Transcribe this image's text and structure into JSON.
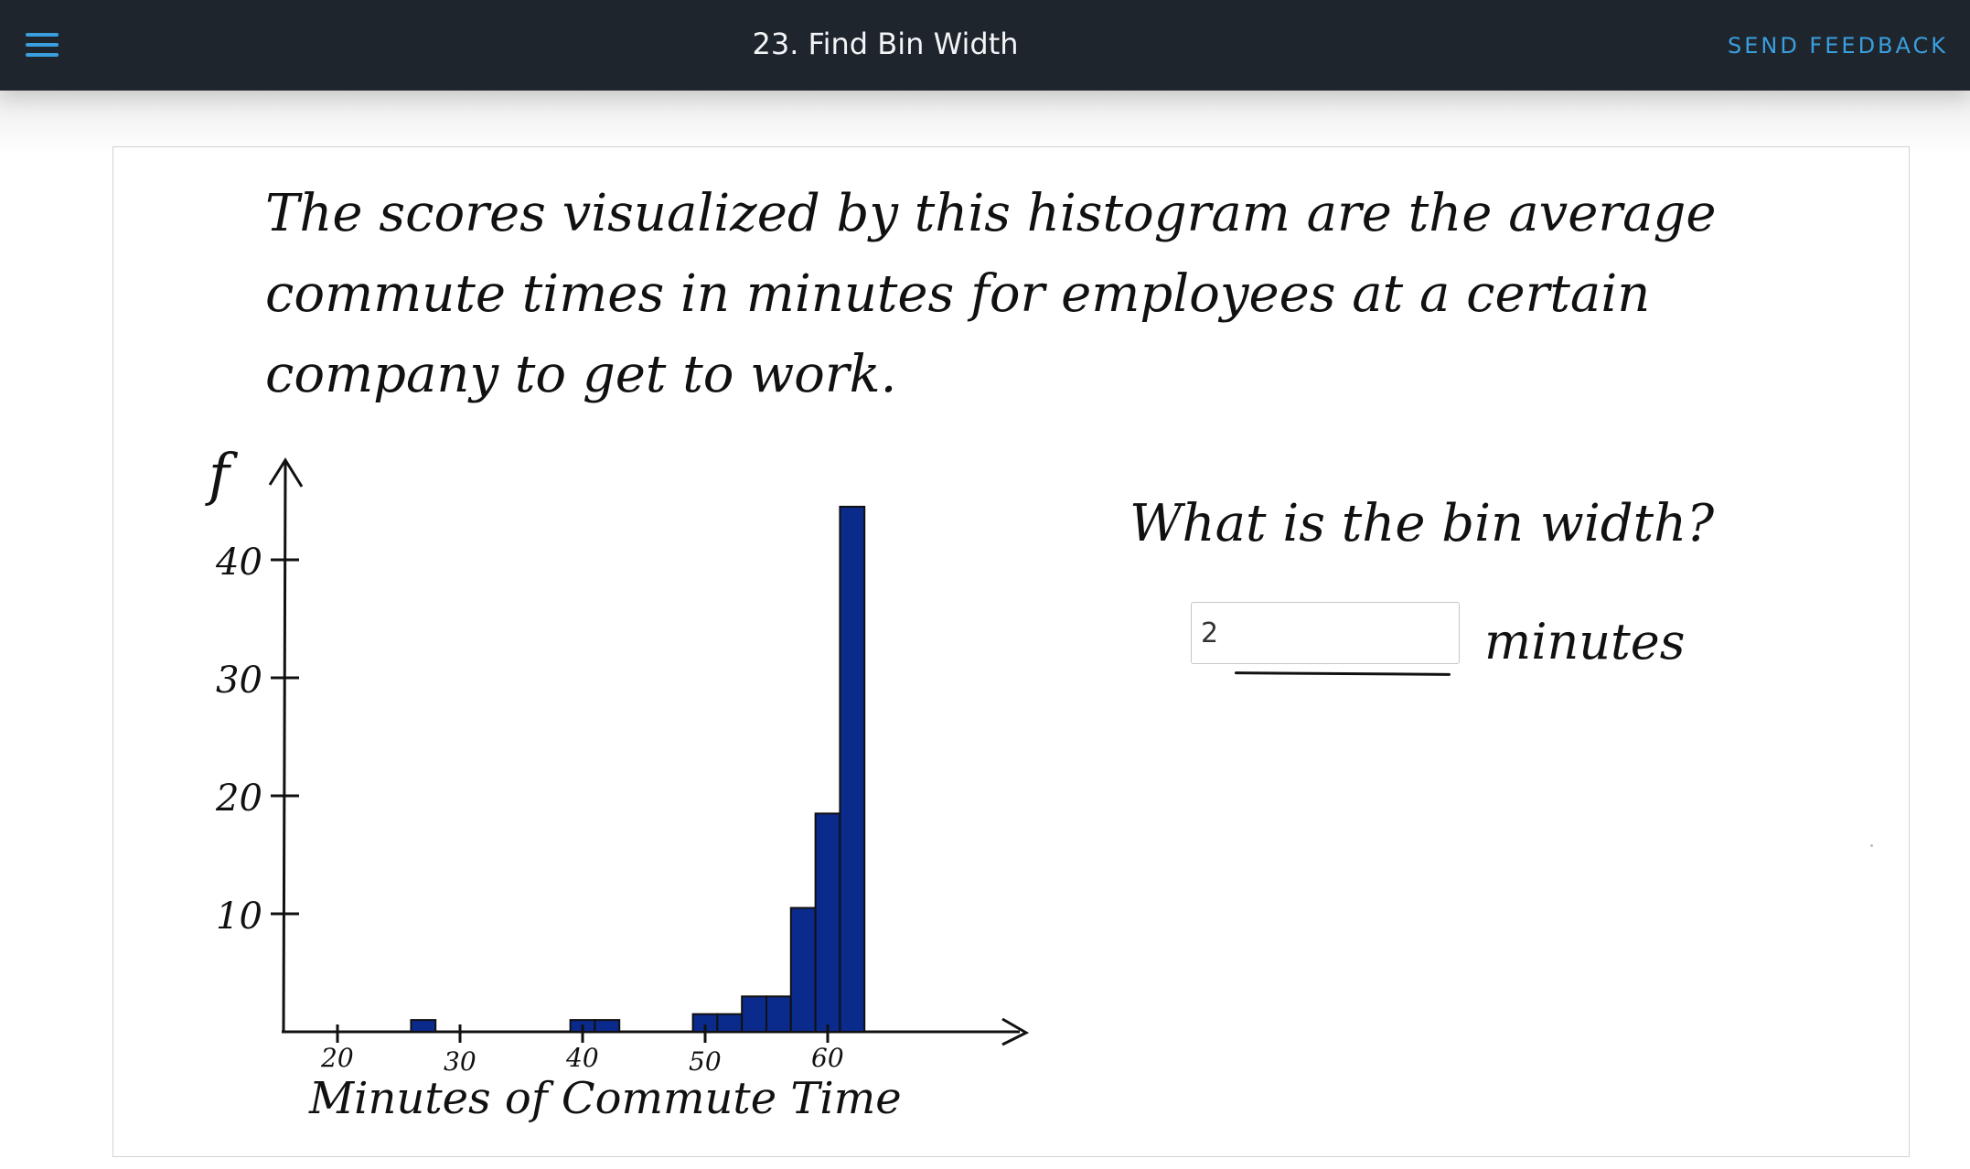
{
  "header": {
    "menu_icon": "hamburger-menu-icon",
    "title": "23. Find Bin Width",
    "feedback_label": "SEND FEEDBACK",
    "colors": {
      "bar_bg": "#1f252d",
      "accent": "#3a9fde"
    }
  },
  "problem": {
    "prompt": "The scores visualized by this histogram are the average commute times in minutes for employees at a certain company to get to work.",
    "question": "What is the bin width?",
    "answer_value": "2",
    "answer_unit": "minutes"
  },
  "chart_data": {
    "type": "bar",
    "title": "",
    "xlabel": "Minutes of Commute Time",
    "ylabel": "f",
    "x_ticks": [
      "20",
      "30",
      "40",
      "50",
      "60"
    ],
    "y_ticks": [
      "10",
      "20",
      "30",
      "40"
    ],
    "xlim": [
      15,
      75
    ],
    "ylim": [
      0,
      45
    ],
    "bin_width": 2,
    "bar_color": "#0a2a8c",
    "bins": [
      {
        "start": 26,
        "end": 28,
        "value": 1
      },
      {
        "start": 39,
        "end": 41,
        "value": 1
      },
      {
        "start": 41,
        "end": 43,
        "value": 1
      },
      {
        "start": 49,
        "end": 51,
        "value": 1.5
      },
      {
        "start": 51,
        "end": 53,
        "value": 1.5
      },
      {
        "start": 53,
        "end": 55,
        "value": 3
      },
      {
        "start": 55,
        "end": 57,
        "value": 3
      },
      {
        "start": 57,
        "end": 59,
        "value": 10.5
      },
      {
        "start": 59,
        "end": 61,
        "value": 18.5
      },
      {
        "start": 61,
        "end": 63,
        "value": 44.5
      }
    ]
  }
}
